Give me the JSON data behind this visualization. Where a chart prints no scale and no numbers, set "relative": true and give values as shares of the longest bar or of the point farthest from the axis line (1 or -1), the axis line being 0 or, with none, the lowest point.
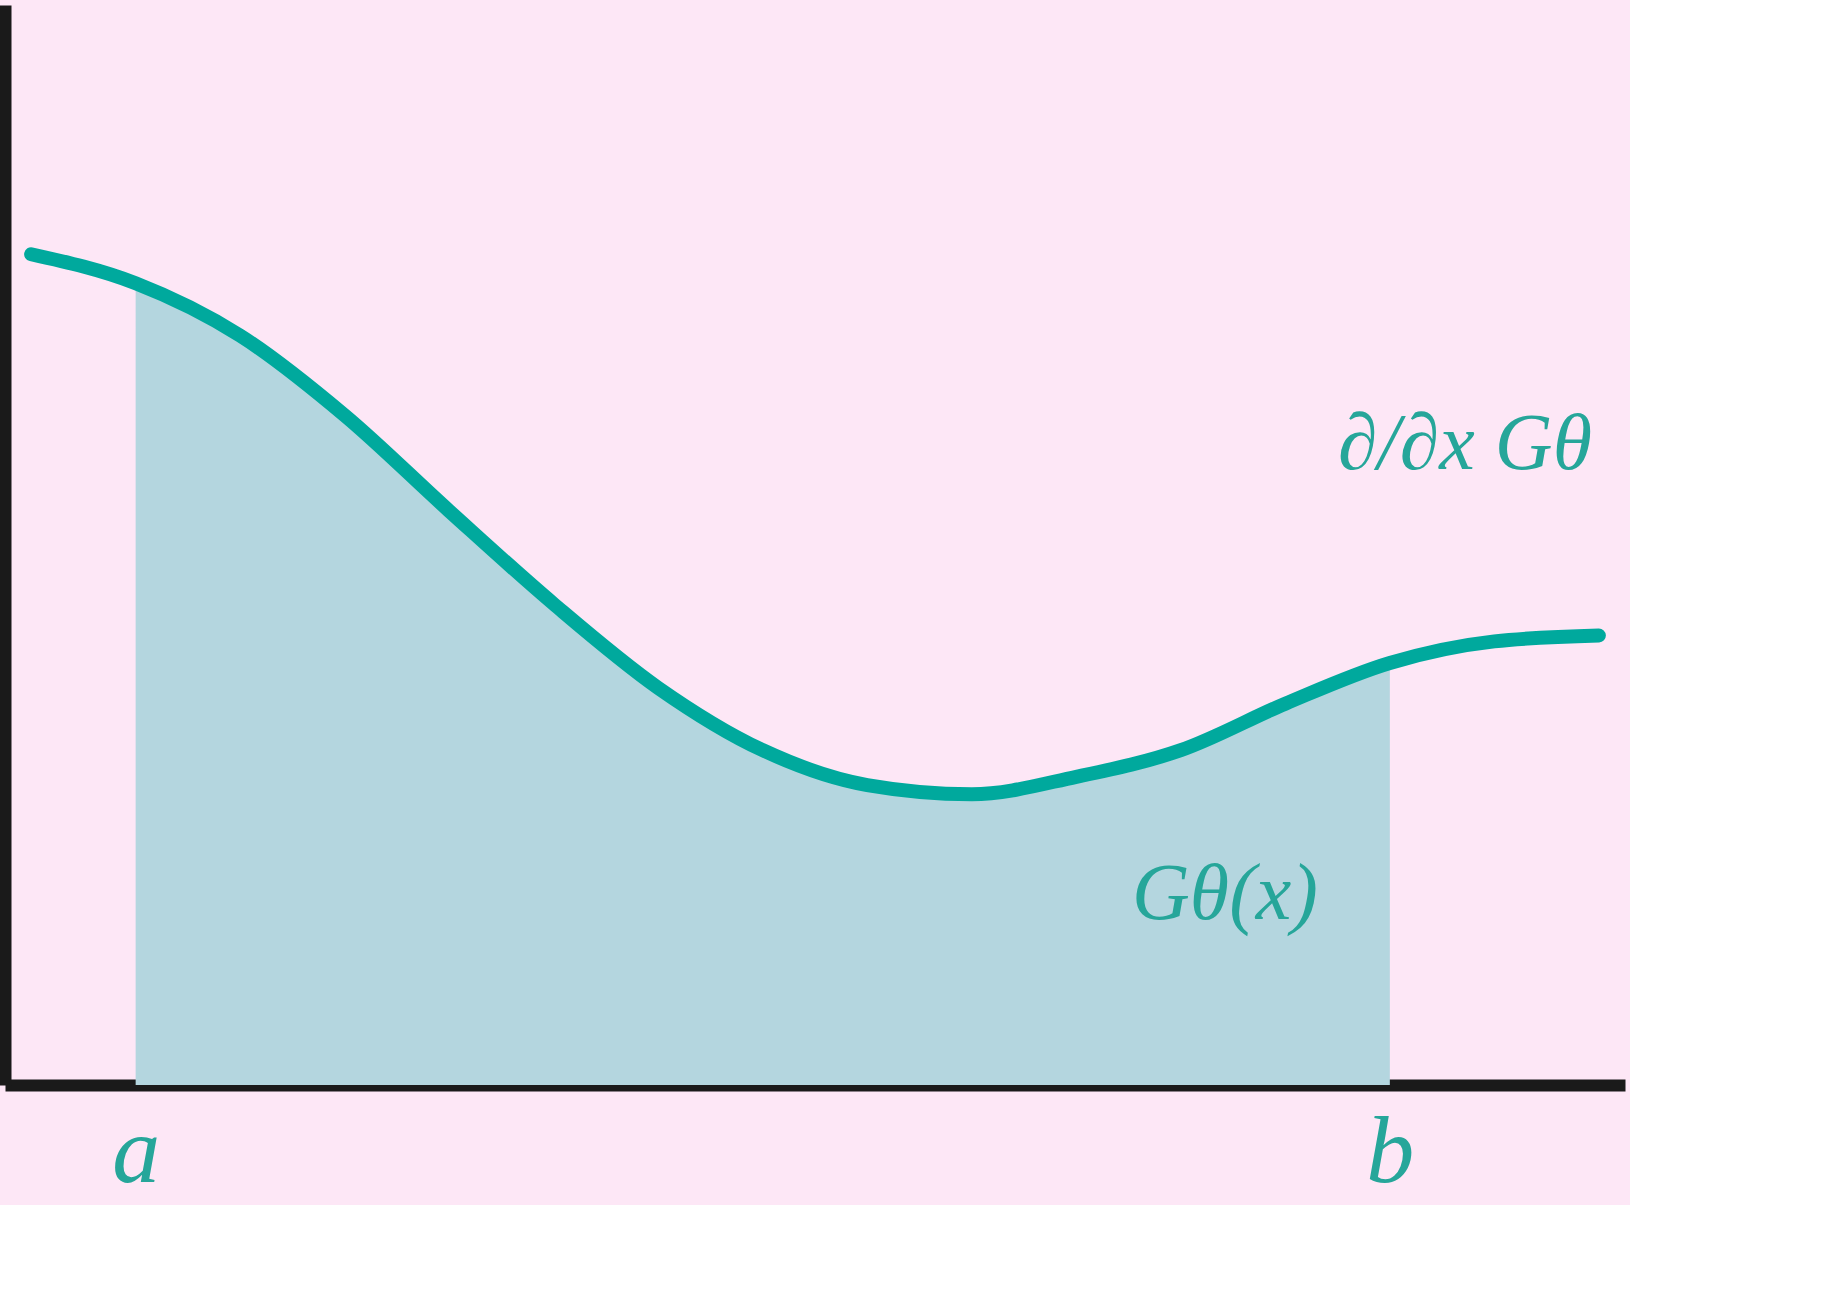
{
  "chart_data": {
    "type": "line",
    "relative": true,
    "tick_labels": "x",
    "grid": false,
    "legend": false,
    "categories": [
      null,
      "a",
      null,
      null,
      null,
      null,
      null,
      null,
      null,
      null,
      null,
      null,
      null,
      "b",
      null,
      null
    ],
    "series": [
      {
        "type": "area",
        "color": "#b4d6df",
        "values": [
          null,
          0.965,
          0.902,
          0.806,
          0.691,
          0.579,
          0.478,
          0.403,
          0.361,
          0.35,
          0.371,
          0.403,
          0.459,
          0.508,
          null,
          null
        ]
      },
      {
        "color": "#00a99d",
        "values": [
          1,
          0.965,
          0.902,
          0.806,
          0.691,
          0.579,
          0.478,
          0.403,
          0.361,
          0.35,
          0.371,
          0.403,
          0.459,
          0.508,
          0.534,
          0.541
        ]
      }
    ],
    "annotations": [
      "∂/∂x Gθ",
      "Gθ(x)"
    ]
  }
}
